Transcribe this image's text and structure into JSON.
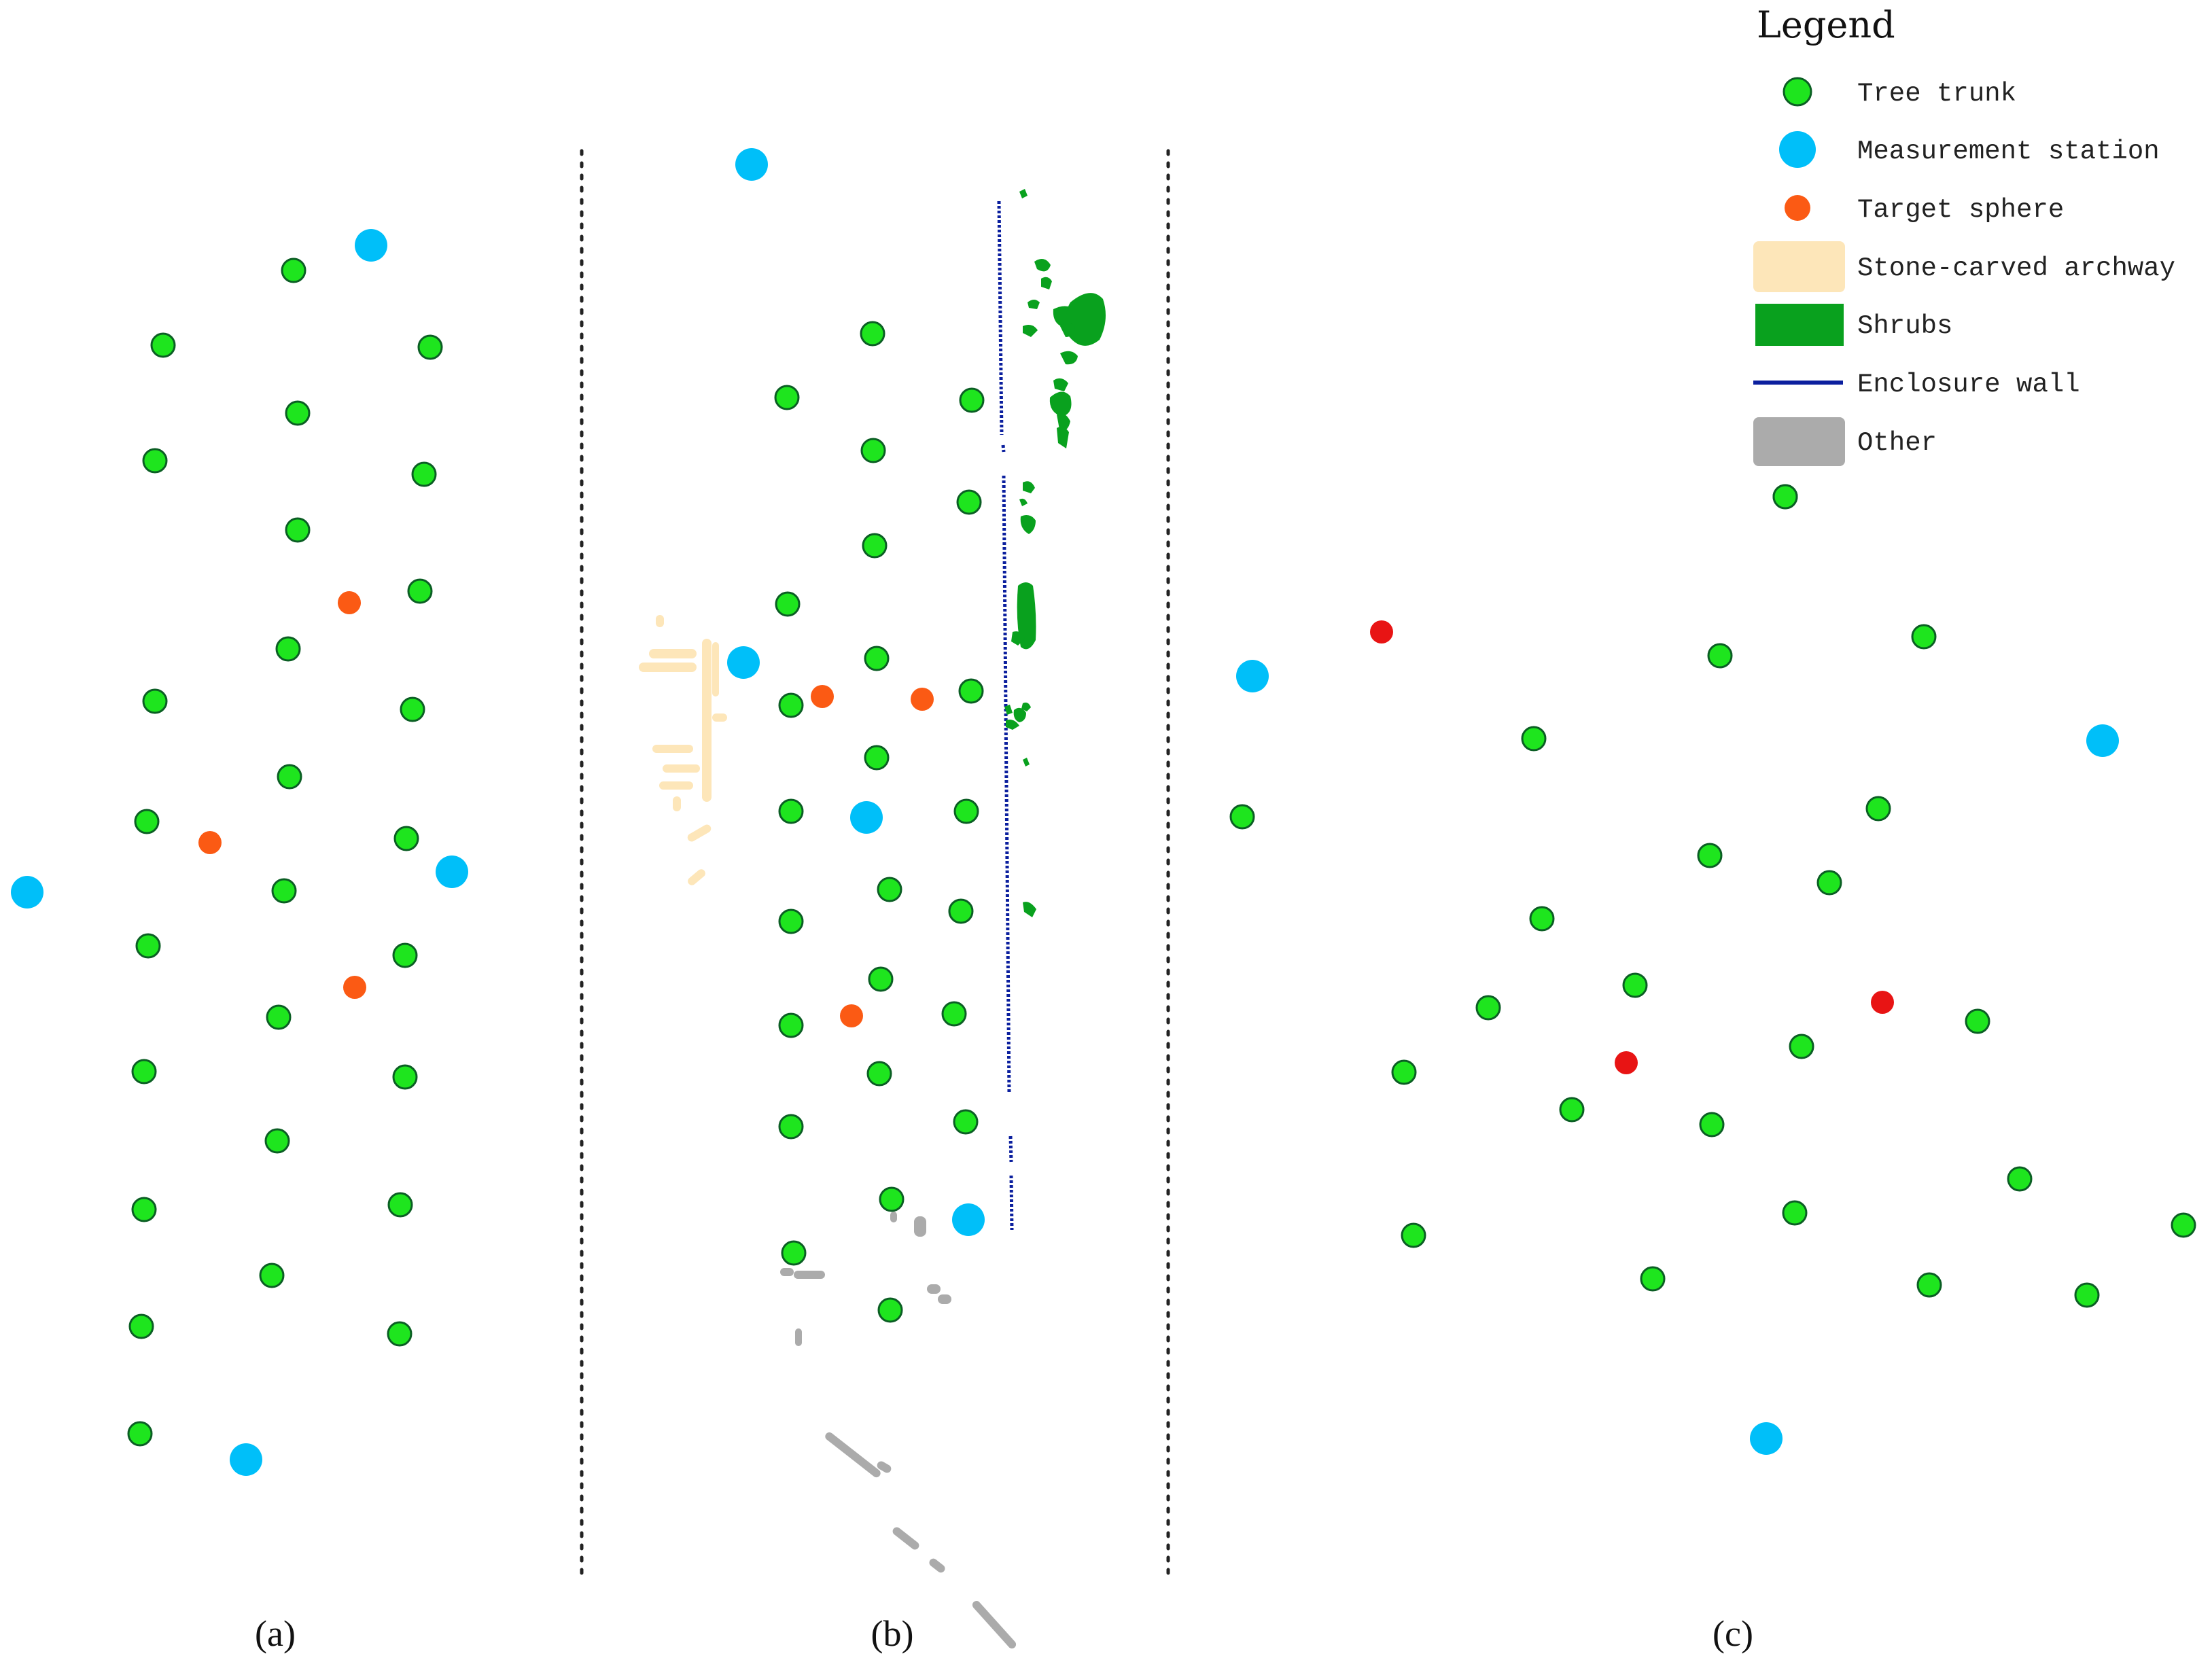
{
  "colors": {
    "tree_trunk": "#1ee51e",
    "tree_trunk_outline": "#0b5e24",
    "measurement_station": "#00bff9",
    "target_sphere": "#fb5a14",
    "target_sphere_c": "#e81414",
    "stone_archway": "#fde6b9",
    "shrubs": "#09a11e",
    "enclosure_wall": "#0b1f9e",
    "other": "#ababab"
  },
  "legend": {
    "title": "Legend",
    "items": [
      {
        "label": "Tree trunk",
        "icon": "tree-trunk-dot"
      },
      {
        "label": "Measurement station",
        "icon": "measurement-station-dot"
      },
      {
        "label": "Target sphere",
        "icon": "target-sphere-dot"
      },
      {
        "label": "Stone-carved archway",
        "icon": "archway-swatch"
      },
      {
        "label": "Shrubs",
        "icon": "shrubs-swatch"
      },
      {
        "label": "Enclosure wall",
        "icon": "wall-line"
      },
      {
        "label": "Other",
        "icon": "other-swatch"
      }
    ]
  },
  "panels": {
    "a": {
      "label": "(a)"
    },
    "b": {
      "label": "(b)"
    },
    "c": {
      "label": "(c)"
    }
  }
}
